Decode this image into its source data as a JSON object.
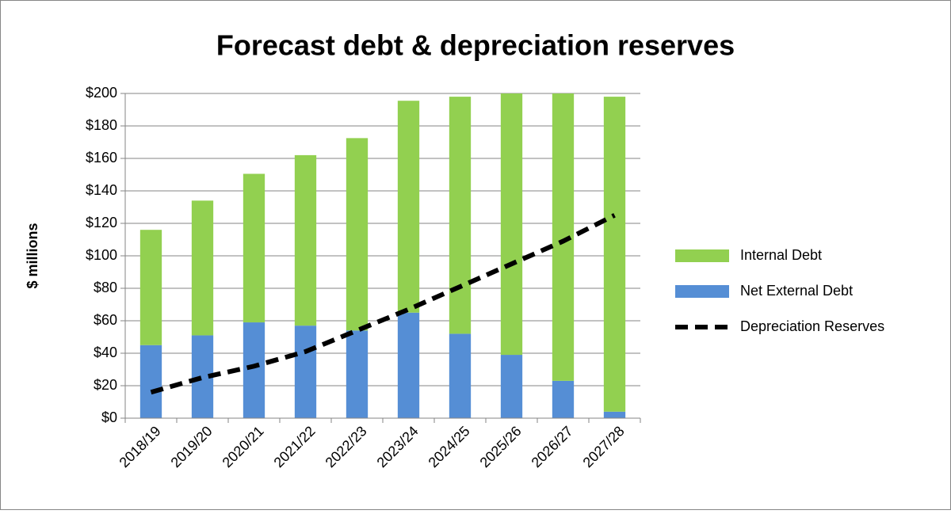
{
  "chart_data": {
    "type": "bar",
    "stacked": true,
    "title": "Forecast debt & depreciation reserves",
    "y_label": "$ millions",
    "categories": [
      "2018/19",
      "2019/20",
      "2020/21",
      "2021/22",
      "2022/23",
      "2023/24",
      "2024/25",
      "2025/26",
      "2026/27",
      "2027/28"
    ],
    "series": [
      {
        "name": "Net External Debt",
        "type": "bar",
        "color": "#558ed5",
        "values": [
          45,
          51,
          59,
          57,
          54,
          65,
          52,
          39,
          23,
          4
        ]
      },
      {
        "name": "Internal Debt",
        "type": "bar",
        "color": "#92d050",
        "values": [
          71,
          83,
          91.5,
          105,
          118.5,
          130.5,
          146,
          161,
          177,
          194
        ]
      },
      {
        "name": "Depreciation Reserves",
        "type": "line",
        "color": "#000000",
        "dashed": true,
        "values": [
          16,
          25,
          32,
          41,
          54,
          67,
          81,
          95,
          109,
          125
        ]
      }
    ],
    "ylim": [
      0,
      200
    ],
    "yticks": [
      {
        "value": 0,
        "label": "$0"
      },
      {
        "value": 20,
        "label": "$20"
      },
      {
        "value": 40,
        "label": "$40"
      },
      {
        "value": 60,
        "label": "$60"
      },
      {
        "value": 80,
        "label": "$80"
      },
      {
        "value": 100,
        "label": "$100"
      },
      {
        "value": 120,
        "label": "$120"
      },
      {
        "value": 140,
        "label": "$140"
      },
      {
        "value": 160,
        "label": "$160"
      },
      {
        "value": 180,
        "label": "$180"
      },
      {
        "value": 200,
        "label": "$200"
      }
    ],
    "grid": true,
    "legend": "right"
  }
}
